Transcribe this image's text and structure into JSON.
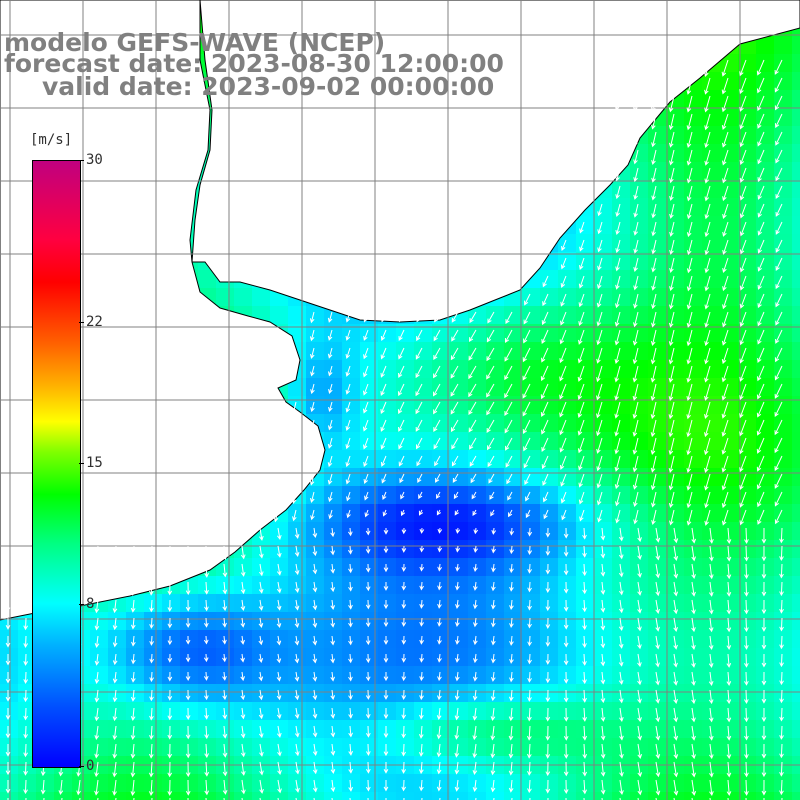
{
  "title": {
    "model": "modelo GEFS-WAVE (NCEP)",
    "forecast": "forecast date: 2023-08-30 12:00:00",
    "valid": "valid date: 2023-09-02 00:00:00"
  },
  "colorbar": {
    "unit": "[m/s]",
    "ticks": [
      {
        "label": "30",
        "value": 30
      },
      {
        "label": "22",
        "value": 22
      },
      {
        "label": "15",
        "value": 15
      },
      {
        "label": "8",
        "value": 8
      },
      {
        "label": "0",
        "value": 0
      }
    ]
  },
  "colors": {
    "land": "#ffffff",
    "coast": "#000000",
    "grid": "#808080",
    "arrow": "#ffffff",
    "title": "#808080"
  }
}
